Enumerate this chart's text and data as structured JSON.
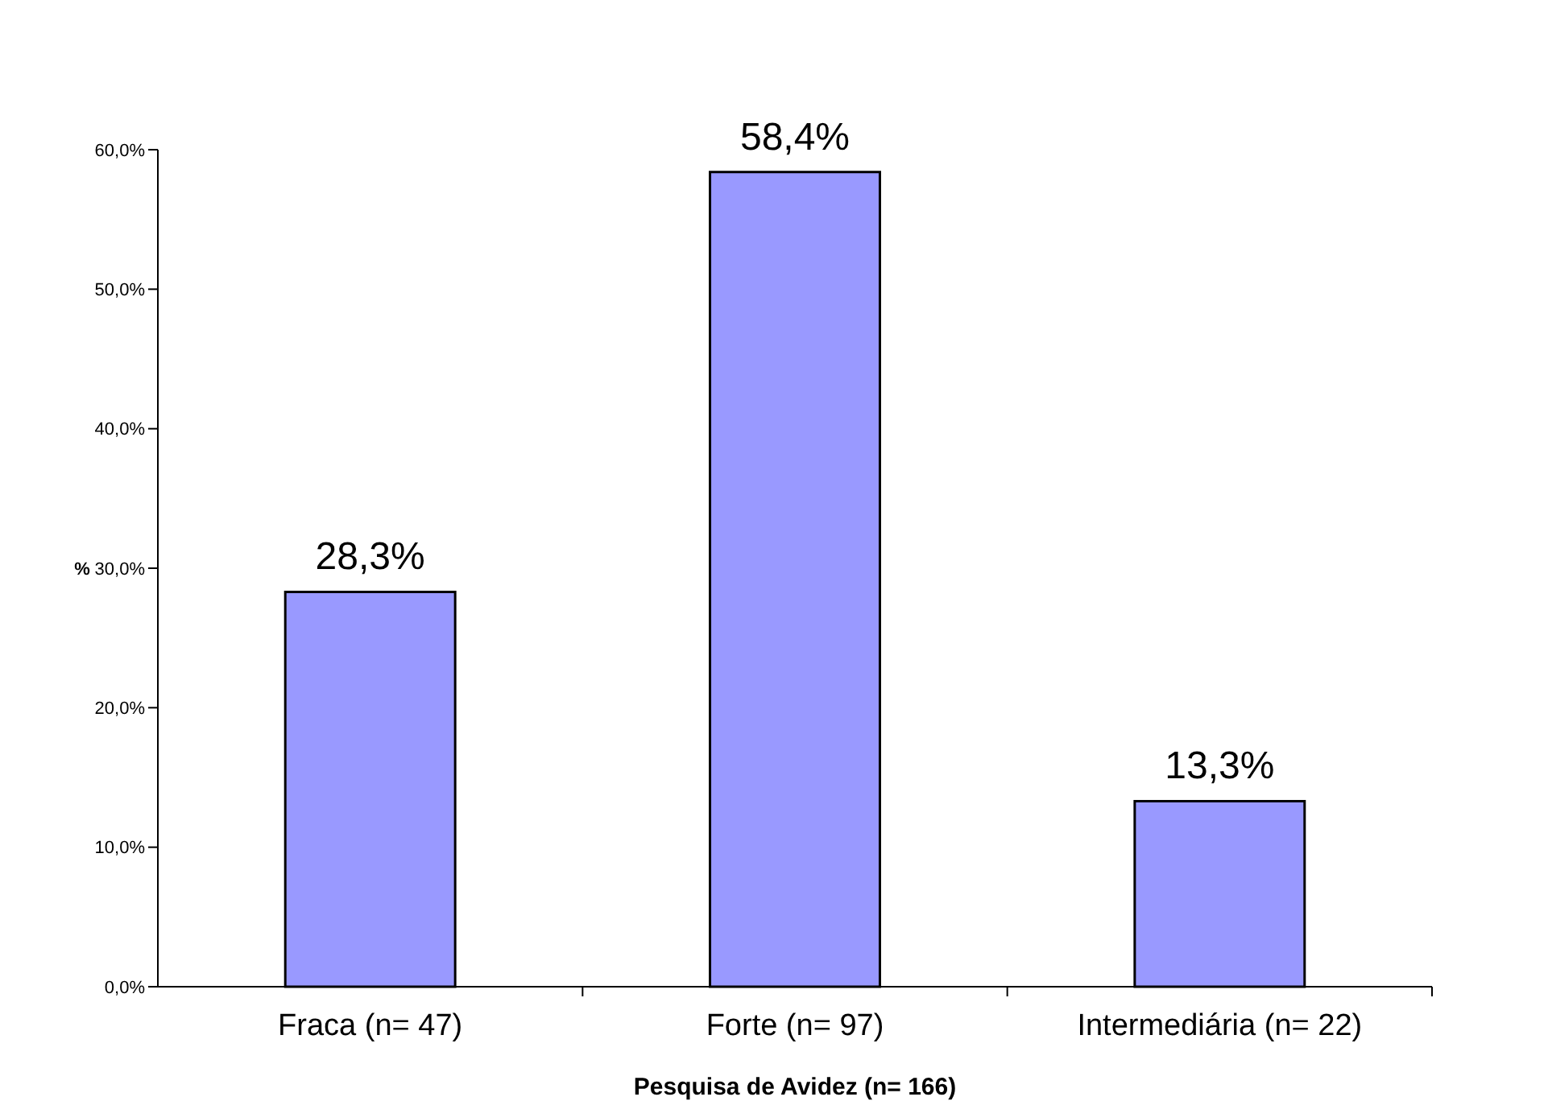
{
  "chart_data": {
    "type": "bar",
    "xlabel": "Pesquisa de Avidez (n= 166)",
    "ylabel": "%",
    "categories": [
      "Fraca (n= 47)",
      "Forte (n= 97)",
      "Intermediária (n= 22)"
    ],
    "values": [
      28.3,
      58.4,
      13.3
    ],
    "value_labels": [
      "28,3%",
      "58,4%",
      "13,3%"
    ],
    "color": "#9999ff",
    "ylim": [
      0,
      60
    ],
    "yticks": [
      {
        "value": 0,
        "label": "0,0%"
      },
      {
        "value": 10,
        "label": "10,0%"
      },
      {
        "value": 20,
        "label": "20,0%"
      },
      {
        "value": 30,
        "label": "30,0%"
      },
      {
        "value": 40,
        "label": "40,0%"
      },
      {
        "value": 50,
        "label": "50,0%"
      },
      {
        "value": 60,
        "label": "60,0%"
      }
    ]
  }
}
